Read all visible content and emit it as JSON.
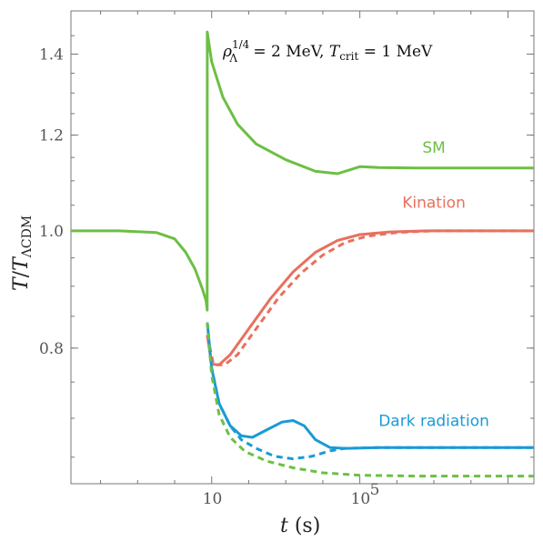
{
  "chart_data": {
    "type": "line",
    "title": "",
    "annotation": {
      "lhs": "ρ",
      "sup": "1/4",
      "sub": "Λ",
      "mid": " = 2 MeV,    ",
      "T": "T",
      "tsub": "crit",
      "rhs": " = 1 MeV"
    },
    "xlabel": {
      "var": "t",
      "unit": " (s)"
    },
    "ylabel": {
      "var": "T",
      "slash": "/",
      "den": "T",
      "densub": "ΛCDM"
    },
    "x_scale": "log",
    "x_range_log10": [
      -2.8,
      9.7
    ],
    "y_scale": "log",
    "y_range": [
      0.618,
      1.52
    ],
    "x_ticks": [
      {
        "log10": 1,
        "label": "10"
      },
      {
        "log10": 5,
        "label": "10"
      }
    ],
    "x_tick_exponent": {
      "log10_5": "5"
    },
    "y_ticks": [
      {
        "value": 0.8,
        "label": "0.8"
      },
      {
        "value": 1.0,
        "label": "1.0"
      },
      {
        "value": 1.2,
        "label": "1.2"
      },
      {
        "value": 1.4,
        "label": "1.4"
      }
    ],
    "series": [
      {
        "name": "SM",
        "color": "#6cbf45",
        "dash": false,
        "points": [
          [
            -2.8,
            1.0
          ],
          [
            -1.5,
            1.0
          ],
          [
            -0.5,
            0.997
          ],
          [
            0.0,
            0.985
          ],
          [
            0.3,
            0.96
          ],
          [
            0.55,
            0.93
          ],
          [
            0.75,
            0.895
          ],
          [
            0.85,
            0.875
          ],
          [
            0.879,
            0.86
          ],
          [
            0.881,
            1.46
          ],
          [
            1.0,
            1.38
          ],
          [
            1.3,
            1.29
          ],
          [
            1.7,
            1.225
          ],
          [
            2.2,
            1.18
          ],
          [
            3.0,
            1.145
          ],
          [
            3.8,
            1.12
          ],
          [
            4.4,
            1.115
          ],
          [
            5.0,
            1.13
          ],
          [
            5.5,
            1.128
          ],
          [
            6.5,
            1.127
          ],
          [
            9.7,
            1.127
          ]
        ]
      },
      {
        "name": "Kination",
        "color": "#e8705e",
        "dash": false,
        "points": [
          [
            0.881,
            0.82
          ],
          [
            1.0,
            0.776
          ],
          [
            1.2,
            0.775
          ],
          [
            1.5,
            0.79
          ],
          [
            2.0,
            0.83
          ],
          [
            2.6,
            0.88
          ],
          [
            3.2,
            0.925
          ],
          [
            3.8,
            0.96
          ],
          [
            4.4,
            0.982
          ],
          [
            5.0,
            0.993
          ],
          [
            5.8,
            0.998
          ],
          [
            6.8,
            1.0
          ],
          [
            9.7,
            1.0
          ]
        ]
      },
      {
        "name": "Kination (dashed)",
        "color": "#e8705e",
        "dash": true,
        "points": [
          [
            0.881,
            0.82
          ],
          [
            1.05,
            0.775
          ],
          [
            1.35,
            0.775
          ],
          [
            1.7,
            0.79
          ],
          [
            2.2,
            0.83
          ],
          [
            2.8,
            0.88
          ],
          [
            3.4,
            0.922
          ],
          [
            4.0,
            0.955
          ],
          [
            4.6,
            0.978
          ],
          [
            5.2,
            0.99
          ],
          [
            6.0,
            0.997
          ],
          [
            7.0,
            1.0
          ],
          [
            9.7,
            1.0
          ]
        ]
      },
      {
        "name": "Dark radiation",
        "color": "#1a9ad6",
        "dash": false,
        "points": [
          [
            0.882,
            0.84
          ],
          [
            1.0,
            0.77
          ],
          [
            1.2,
            0.72
          ],
          [
            1.5,
            0.69
          ],
          [
            1.8,
            0.677
          ],
          [
            2.1,
            0.675
          ],
          [
            2.5,
            0.685
          ],
          [
            2.9,
            0.695
          ],
          [
            3.2,
            0.697
          ],
          [
            3.5,
            0.69
          ],
          [
            3.8,
            0.672
          ],
          [
            4.2,
            0.662
          ],
          [
            4.6,
            0.661
          ],
          [
            5.5,
            0.662
          ],
          [
            9.7,
            0.662
          ]
        ]
      },
      {
        "name": "Dark radiation (dashed)",
        "color": "#1a9ad6",
        "dash": true,
        "points": [
          [
            0.882,
            0.84
          ],
          [
            1.0,
            0.77
          ],
          [
            1.2,
            0.72
          ],
          [
            1.5,
            0.69
          ],
          [
            1.8,
            0.672
          ],
          [
            2.2,
            0.661
          ],
          [
            2.7,
            0.651
          ],
          [
            3.2,
            0.648
          ],
          [
            3.7,
            0.651
          ],
          [
            4.2,
            0.658
          ],
          [
            4.6,
            0.661
          ],
          [
            5.5,
            0.662
          ],
          [
            9.7,
            0.662
          ]
        ]
      },
      {
        "name": "SM (dashed)",
        "color": "#6cbf45",
        "dash": true,
        "points": [
          [
            0.882,
            0.84
          ],
          [
            1.0,
            0.76
          ],
          [
            1.2,
            0.705
          ],
          [
            1.5,
            0.675
          ],
          [
            1.9,
            0.657
          ],
          [
            2.5,
            0.645
          ],
          [
            3.2,
            0.637
          ],
          [
            4.0,
            0.631
          ],
          [
            5.0,
            0.628
          ],
          [
            6.5,
            0.627
          ],
          [
            9.7,
            0.627
          ]
        ]
      }
    ],
    "labels": [
      {
        "text": "SM",
        "color": "#6cbf45",
        "x": 7.0,
        "y": 1.16
      },
      {
        "text": "Kination",
        "color": "#e8705e",
        "x": 7.0,
        "y": 1.045
      },
      {
        "text": "Dark radiation",
        "color": "#1a9ad6",
        "x": 7.0,
        "y": 0.69
      }
    ]
  }
}
